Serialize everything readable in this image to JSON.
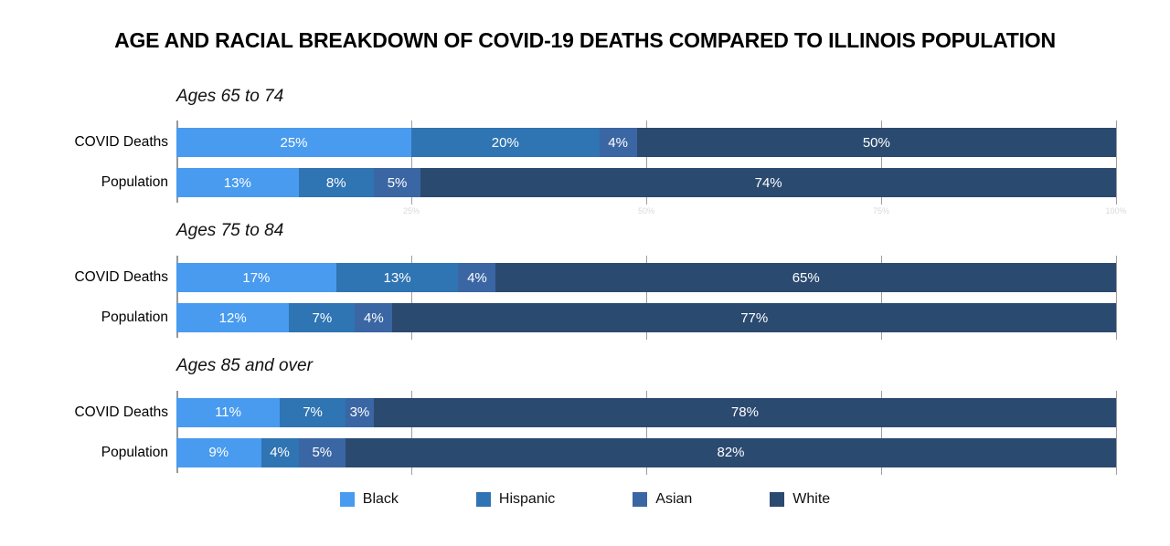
{
  "title": "AGE AND RACIAL BREAKDOWN OF COVID-19 DEATHS COMPARED TO ILLINOIS POPULATION",
  "chart_data": {
    "type": "bar",
    "subtype": "horizontal-stacked-grouped",
    "title": "AGE AND RACIAL BREAKDOWN OF COVID-19 DEATHS COMPARED TO ILLINOIS POPULATION",
    "series_names": [
      "Black",
      "Hispanic",
      "Asian",
      "White"
    ],
    "colors": {
      "Black": "#489BEF",
      "Hispanic": "#2F74B3",
      "Asian": "#3B66A4",
      "White": "#2B4A70"
    },
    "x_axis": {
      "min": 0,
      "max": 100,
      "ticks": [
        25,
        50,
        75,
        100
      ],
      "tick_labels": [
        "25%",
        "50%",
        "75%",
        "100%"
      ],
      "grid": true
    },
    "legend": {
      "position": "bottom",
      "entries": [
        "Black",
        "Hispanic",
        "Asian",
        "White"
      ]
    },
    "groups": [
      {
        "title": "Ages 65 to 74",
        "rows": [
          {
            "label": "COVID Deaths",
            "values": [
              25,
              20,
              4,
              50
            ],
            "value_labels": [
              "25%",
              "20%",
              "4%",
              "50%"
            ]
          },
          {
            "label": "Population",
            "values": [
              13,
              8,
              5,
              74
            ],
            "value_labels": [
              "13%",
              "8%",
              "5%",
              "74%"
            ]
          }
        ]
      },
      {
        "title": "Ages 75 to 84",
        "rows": [
          {
            "label": "COVID Deaths",
            "values": [
              17,
              13,
              4,
              65
            ],
            "value_labels": [
              "17%",
              "13%",
              "4%",
              "65%"
            ]
          },
          {
            "label": "Population",
            "values": [
              12,
              7,
              4,
              77
            ],
            "value_labels": [
              "12%",
              "7%",
              "4%",
              "77%"
            ]
          }
        ]
      },
      {
        "title": "Ages 85 and over",
        "rows": [
          {
            "label": "COVID Deaths",
            "values": [
              11,
              7,
              3,
              78
            ],
            "value_labels": [
              "11%",
              "7%",
              "3%",
              "78%"
            ]
          },
          {
            "label": "Population",
            "values": [
              9,
              4,
              5,
              82
            ],
            "value_labels": [
              "9%",
              "4%",
              "5%",
              "82%"
            ]
          }
        ]
      }
    ]
  }
}
